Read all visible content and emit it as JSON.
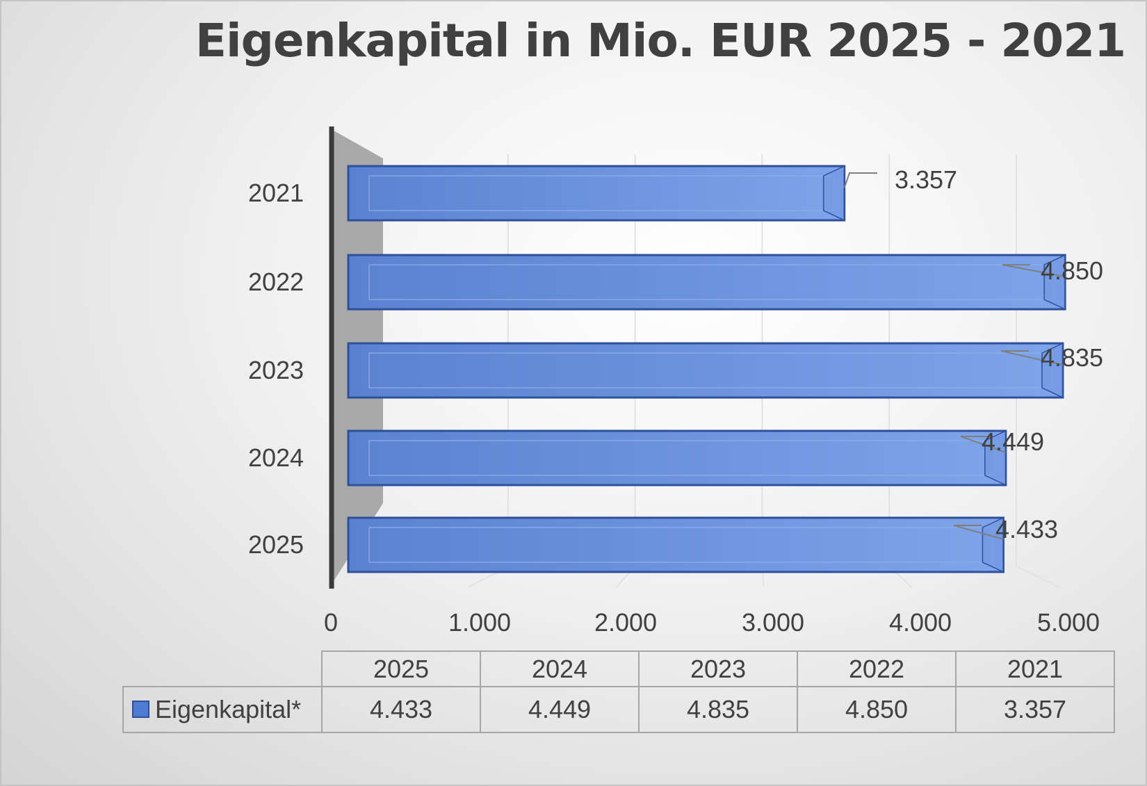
{
  "chart_data": {
    "type": "bar",
    "orientation": "horizontal",
    "title": "Eigenkapital in Mio. EUR 2025 - 2021",
    "categories": [
      "2025",
      "2024",
      "2023",
      "2022",
      "2021"
    ],
    "series": [
      {
        "name": "Eigenkapital*",
        "values": [
          4433,
          4449,
          4835,
          4850,
          3357
        ],
        "color": "#4f7bd0"
      }
    ],
    "value_labels": [
      "4.433",
      "4.449",
      "4.835",
      "4.850",
      "3.357"
    ],
    "xlim": [
      0,
      5000
    ],
    "x_ticks": [
      0,
      1000,
      2000,
      3000,
      4000,
      5000
    ],
    "x_tick_labels": [
      "0",
      "1.000",
      "2.000",
      "3.000",
      "4.000",
      "5.000"
    ],
    "grid": true,
    "legend": "data-table"
  },
  "table": {
    "headers": [
      "2025",
      "2024",
      "2023",
      "2022",
      "2021"
    ],
    "series_label": "Eigenkapital*",
    "values": [
      "4.433",
      "4.449",
      "4.835",
      "4.850",
      "3.357"
    ]
  },
  "colors": {
    "bar_fill": "#4f7bd0",
    "bar_edge": "#2e4f9a",
    "axis_wall": "#a9a9a9",
    "axis_line": "#3a3a3a",
    "text": "#404040"
  }
}
